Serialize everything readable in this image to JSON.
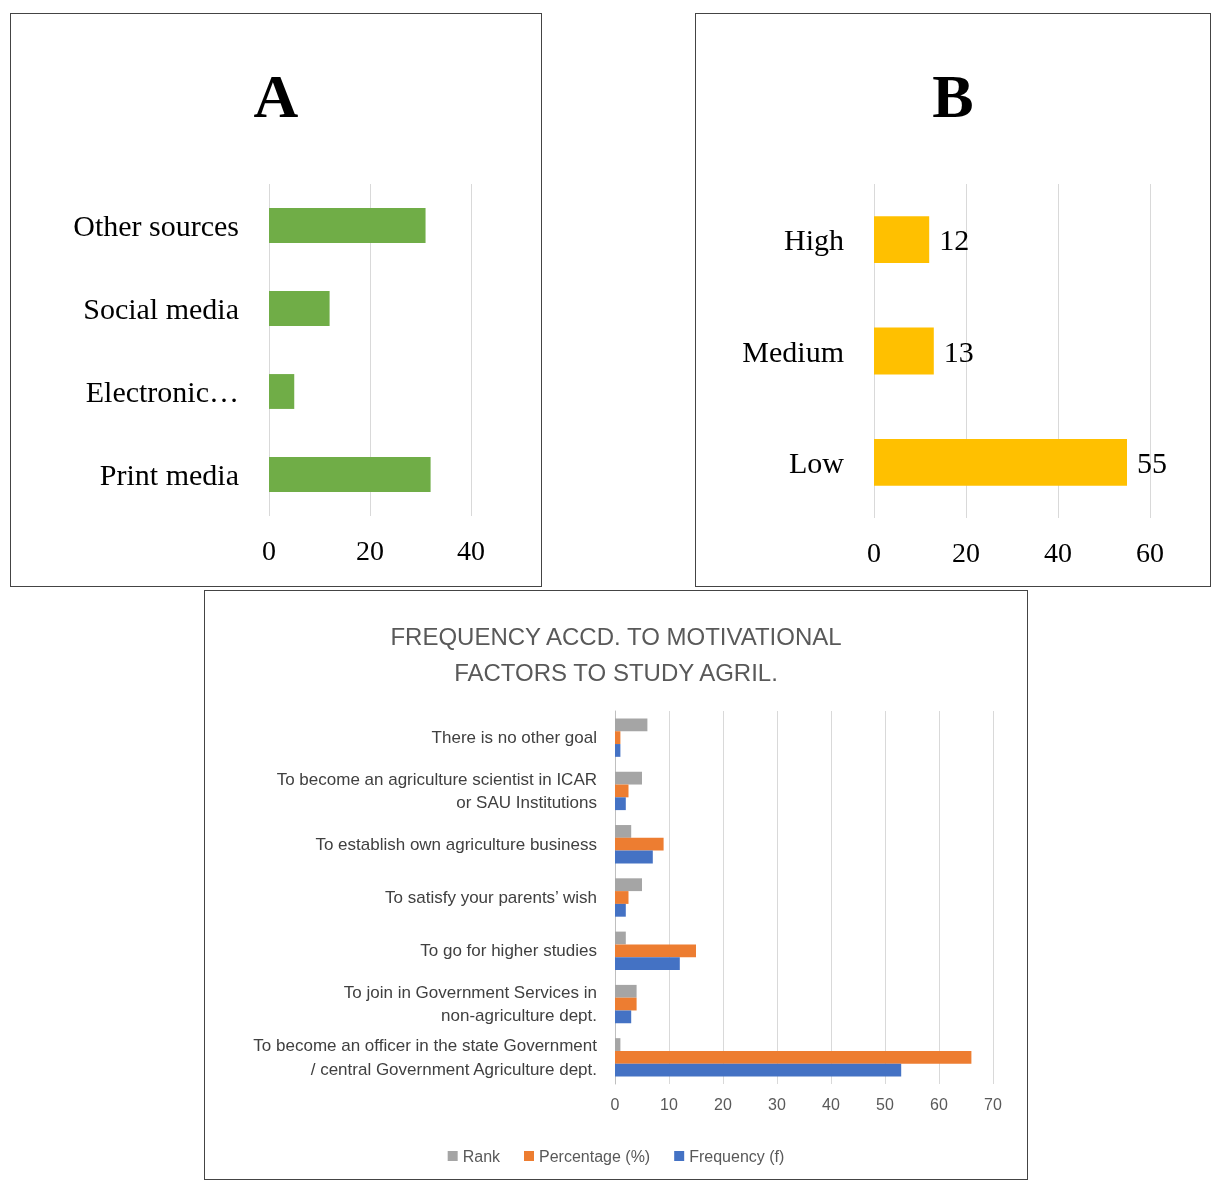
{
  "chart_data": [
    {
      "type": "bar",
      "orientation": "horizontal",
      "title": "A",
      "categories": [
        "Other sources",
        "Social media",
        "Electronic…",
        "Print media"
      ],
      "values": [
        31,
        12,
        5,
        32
      ],
      "color": "#70ad47",
      "xlim": [
        0,
        40
      ],
      "xticks": [
        0,
        20,
        40
      ],
      "grid": "x"
    },
    {
      "type": "bar",
      "orientation": "horizontal",
      "title": "B",
      "categories": [
        "High",
        "Medium",
        "Low"
      ],
      "values": [
        12,
        13,
        55
      ],
      "color": "#ffc000",
      "xlim": [
        0,
        60
      ],
      "xticks": [
        0,
        20,
        40,
        60
      ],
      "grid": "x",
      "data_labels": true
    },
    {
      "type": "bar",
      "orientation": "horizontal",
      "title": "FREQUENCY ACCD. TO MOTIVATIONAL FACTORS TO STUDY AGRIL.",
      "categories": [
        "There is no other goal",
        "To become an agriculture scientist in ICAR or SAU Institutions",
        "To establish own agriculture business",
        "To satisfy your parents’ wish",
        "To go for higher studies",
        "To join in Government Services in non-agriculture dept.",
        "To become an officer in the state Government / central Government Agriculture dept."
      ],
      "series": [
        {
          "name": "Rank",
          "color": "#a5a5a5",
          "values": [
            6,
            5,
            3,
            5,
            2,
            4,
            1
          ]
        },
        {
          "name": "Percentage (%)",
          "color": "#ed7d31",
          "values": [
            1,
            2.5,
            9,
            2.5,
            15,
            4,
            66
          ]
        },
        {
          "name": "Frequency (f)",
          "color": "#4472c4",
          "values": [
            1,
            2,
            7,
            2,
            12,
            3,
            53
          ]
        }
      ],
      "xlim": [
        0,
        70
      ],
      "xticks": [
        0,
        10,
        20,
        30,
        40,
        50,
        60,
        70
      ],
      "grid": "x",
      "legend": "bottom"
    }
  ]
}
